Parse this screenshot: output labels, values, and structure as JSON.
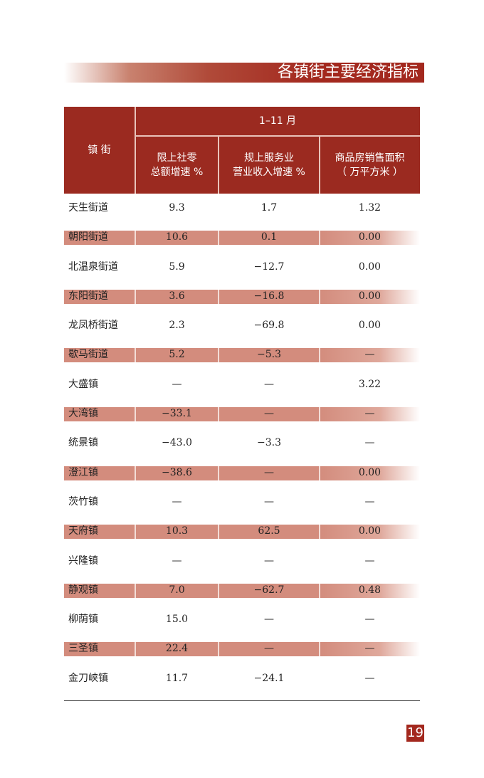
{
  "title": "各镇街主要经济指标",
  "header": {
    "row_label": "镇 街",
    "period": "1–11 月",
    "col1": [
      "限上社零",
      "总额增速 %"
    ],
    "col2": [
      "规上服务业",
      "营业收入增速 %"
    ],
    "col3": [
      "商品房销售面积",
      "（ 万平方米 ）"
    ]
  },
  "rows": [
    {
      "name": "天生街道",
      "v1": "9.3",
      "v2": "1.7",
      "v3": "1.32",
      "shaded": false
    },
    {
      "name": "朝阳街道",
      "v1": "10.6",
      "v2": "0.1",
      "v3": "0.00",
      "shaded": true
    },
    {
      "name": "北温泉街道",
      "v1": "5.9",
      "v2": "−12.7",
      "v3": "0.00",
      "shaded": false
    },
    {
      "name": "东阳街道",
      "v1": "3.6",
      "v2": "−16.8",
      "v3": "0.00",
      "shaded": true
    },
    {
      "name": "龙凤桥街道",
      "v1": "2.3",
      "v2": "−69.8",
      "v3": "0.00",
      "shaded": false
    },
    {
      "name": "歇马街道",
      "v1": "5.2",
      "v2": "−5.3",
      "v3": "—",
      "shaded": true
    },
    {
      "name": "大盛镇",
      "v1": "—",
      "v2": "—",
      "v3": "3.22",
      "shaded": false
    },
    {
      "name": "大湾镇",
      "v1": "−33.1",
      "v2": "—",
      "v3": "—",
      "shaded": true
    },
    {
      "name": "统景镇",
      "v1": "−43.0",
      "v2": "−3.3",
      "v3": "—",
      "shaded": false
    },
    {
      "name": "澄江镇",
      "v1": "−38.6",
      "v2": "—",
      "v3": "0.00",
      "shaded": true
    },
    {
      "name": "茨竹镇",
      "v1": "—",
      "v2": "—",
      "v3": "—",
      "shaded": false
    },
    {
      "name": "天府镇",
      "v1": "10.3",
      "v2": "62.5",
      "v3": "0.00",
      "shaded": true
    },
    {
      "name": "兴隆镇",
      "v1": "—",
      "v2": "—",
      "v3": "—",
      "shaded": false
    },
    {
      "name": "静观镇",
      "v1": "7.0",
      "v2": "−62.7",
      "v3": "0.48",
      "shaded": true
    },
    {
      "name": "柳荫镇",
      "v1": "15.0",
      "v2": "—",
      "v3": "—",
      "shaded": false
    },
    {
      "name": "三圣镇",
      "v1": "22.4",
      "v2": "—",
      "v3": "—",
      "shaded": true
    },
    {
      "name": "金刀峡镇",
      "v1": "11.7",
      "v2": "−24.1",
      "v3": "—",
      "shaded": false
    }
  ],
  "page_number": "19",
  "colors": {
    "accent": "#a3281e",
    "header_bg": "#9b2a20",
    "band": "#d38c7d"
  }
}
